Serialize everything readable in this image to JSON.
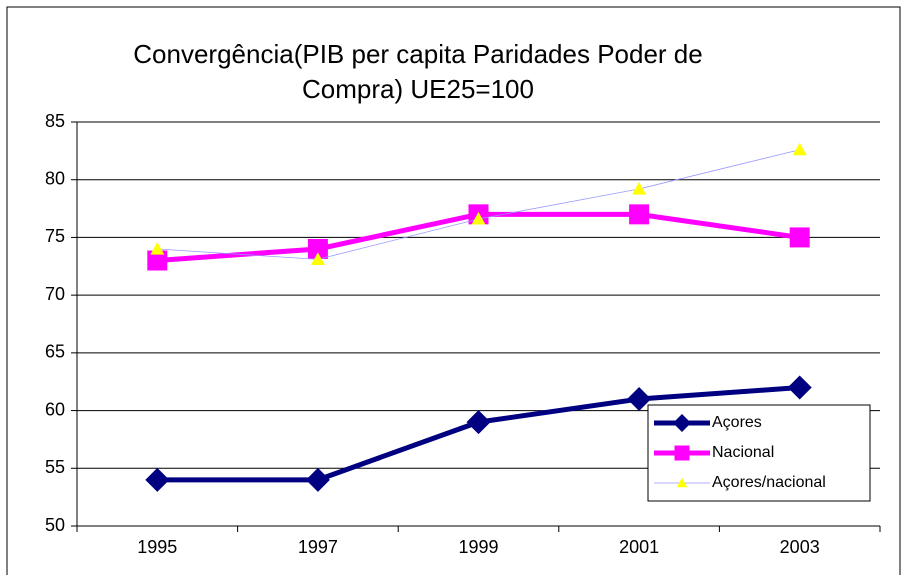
{
  "chart_data": {
    "type": "line",
    "title": [
      "Convergência(PIB per capita Paridades Poder de",
      "Compra) UE25=100"
    ],
    "categories": [
      "1995",
      "1997",
      "1999",
      "2001",
      "2003"
    ],
    "series": [
      {
        "name": "Açores",
        "color": "#000080",
        "values": [
          54,
          54,
          59,
          61,
          62
        ]
      },
      {
        "name": "Nacional",
        "color": "#ff00ff",
        "values": [
          73,
          74,
          77,
          77,
          75
        ]
      },
      {
        "name": "Açores/nacional",
        "color": "#ffff00",
        "values": [
          74,
          73.1,
          76.6,
          79.2,
          82.6
        ]
      }
    ],
    "ylim": [
      50,
      85
    ],
    "yticks": [
      50,
      55,
      60,
      65,
      70,
      75,
      80,
      85
    ],
    "grid": true,
    "legend": "lower right"
  }
}
